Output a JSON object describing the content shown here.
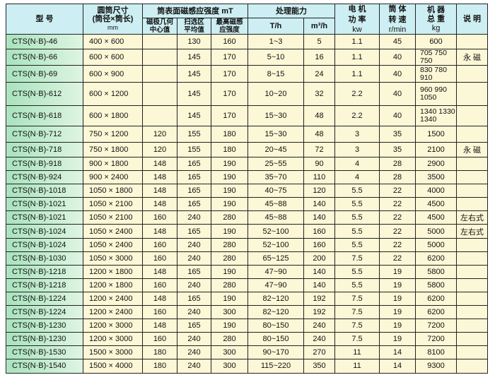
{
  "header": {
    "model": "型  号",
    "drum_size": "圆筒尺寸",
    "drum_size_sub": "(筒径×筒长)",
    "drum_size_unit": "mm",
    "magnetic": "筒表面磁感应强度 mT",
    "mag_center": "磁极几何中心值",
    "mag_avg": "扫选区平均值",
    "mag_max": "最高磁感应强度",
    "capacity": "处理能力",
    "cap_th": "T/h",
    "cap_m3h": "m³/h",
    "motor": "电 机 功 率",
    "motor_unit": "kw",
    "speed": "筒 体 转 速",
    "speed_unit": "r/min",
    "weight": "机 器 总 重",
    "weight_unit": "kg",
    "note": "说 明"
  },
  "rows": [
    [
      "CTS(N·B)-46",
      "400 × 600",
      "",
      "130",
      "160",
      "1~3",
      "5",
      "1.1",
      "45",
      "600",
      ""
    ],
    [
      "CTS(N·B)-66",
      "600 × 600",
      "",
      "145",
      "170",
      "5~10",
      "16",
      "1.1",
      "40",
      "705  750 750",
      "永 磁"
    ],
    [
      "CTS(N·B)-69",
      "600 × 900",
      "",
      "145",
      "170",
      "8~15",
      "24",
      "1.1",
      "40",
      "830  780 910",
      ""
    ],
    [
      "CTS(N·B)-612",
      "600 × 1200",
      "",
      "145",
      "170",
      "10~20",
      "32",
      "2.2",
      "40",
      "960  990 1050",
      ""
    ],
    [
      "CTS(N·B)-618",
      "600 × 1800",
      "",
      "145",
      "170",
      "15~30",
      "48",
      "2.2",
      "40",
      "1340 1330 1340",
      ""
    ],
    [
      "CTS(N·B)-712",
      "750 × 1200",
      "120",
      "155",
      "180",
      "15~30",
      "48",
      "3",
      "35",
      "1500",
      ""
    ],
    [
      "CTS(N·B)-718",
      "750 × 1800",
      "120",
      "155",
      "180",
      "20~45",
      "72",
      "3",
      "35",
      "2100",
      "永 磁"
    ],
    [
      "CTS(N·B)-918",
      "900 × 1800",
      "148",
      "165",
      "190",
      "25~55",
      "90",
      "4",
      "28",
      "2900",
      ""
    ],
    [
      "CTS(N·B)-924",
      "900 × 2400",
      "148",
      "165",
      "190",
      "35~70",
      "110",
      "4",
      "28",
      "3500",
      ""
    ],
    [
      "CTS(N·B)-1018",
      "1050 × 1800",
      "148",
      "165",
      "190",
      "40~75",
      "120",
      "5.5",
      "22",
      "4000",
      ""
    ],
    [
      "CTS(N·B)-1021",
      "1050 × 2100",
      "148",
      "165",
      "190",
      "45~88",
      "140",
      "5.5",
      "22",
      "4500",
      ""
    ],
    [
      "CTS(N·B)-1021",
      "1050 × 2100",
      "160",
      "240",
      "280",
      "45~88",
      "140",
      "5.5",
      "22",
      "4500",
      "左右式"
    ],
    [
      "CTS(N·B)-1024",
      "1050 × 2400",
      "148",
      "165",
      "190",
      "52~100",
      "160",
      "5.5",
      "22",
      "5000",
      "左右式"
    ],
    [
      "CTS(N·B)-1024",
      "1050 × 2400",
      "160",
      "240",
      "280",
      "52~100",
      "160",
      "5.5",
      "22",
      "5000",
      ""
    ],
    [
      "CTS(N·B)-1030",
      "1050 × 3000",
      "160",
      "240",
      "280",
      "65~125",
      "200",
      "7.5",
      "22",
      "6200",
      ""
    ],
    [
      "CTS(N·B)-1218",
      "1200 × 1800",
      "148",
      "165",
      "190",
      "47~90",
      "140",
      "5.5",
      "19",
      "5800",
      ""
    ],
    [
      "CTS(N·B)-1218",
      "1200 × 1800",
      "160",
      "240",
      "280",
      "47~90",
      "140",
      "5.5",
      "19",
      "5800",
      ""
    ],
    [
      "CTS(N·B)-1224",
      "1200 × 2400",
      "148",
      "165",
      "190",
      "82~120",
      "192",
      "7.5",
      "19",
      "6200",
      ""
    ],
    [
      "CTS(N·B)-1224",
      "1200 × 2400",
      "160",
      "240",
      "300",
      "82~120",
      "192",
      "7.5",
      "19",
      "6200",
      ""
    ],
    [
      "CTS(N·B)-1230",
      "1200 × 3000",
      "148",
      "165",
      "190",
      "80~150",
      "240",
      "7.5",
      "19",
      "7200",
      ""
    ],
    [
      "CTS(N·B)-1230",
      "1200 × 3000",
      "160",
      "240",
      "280",
      "80~150",
      "240",
      "7.5",
      "19",
      "7200",
      ""
    ],
    [
      "CTS(N·B)-1530",
      "1500 × 3000",
      "180",
      "240",
      "300",
      "90~170",
      "270",
      "11",
      "14",
      "8100",
      ""
    ],
    [
      "CTS(N·B)-1540",
      "1500 × 4000",
      "180",
      "240",
      "300",
      "115~220",
      "350",
      "11",
      "14",
      "9300",
      ""
    ]
  ]
}
